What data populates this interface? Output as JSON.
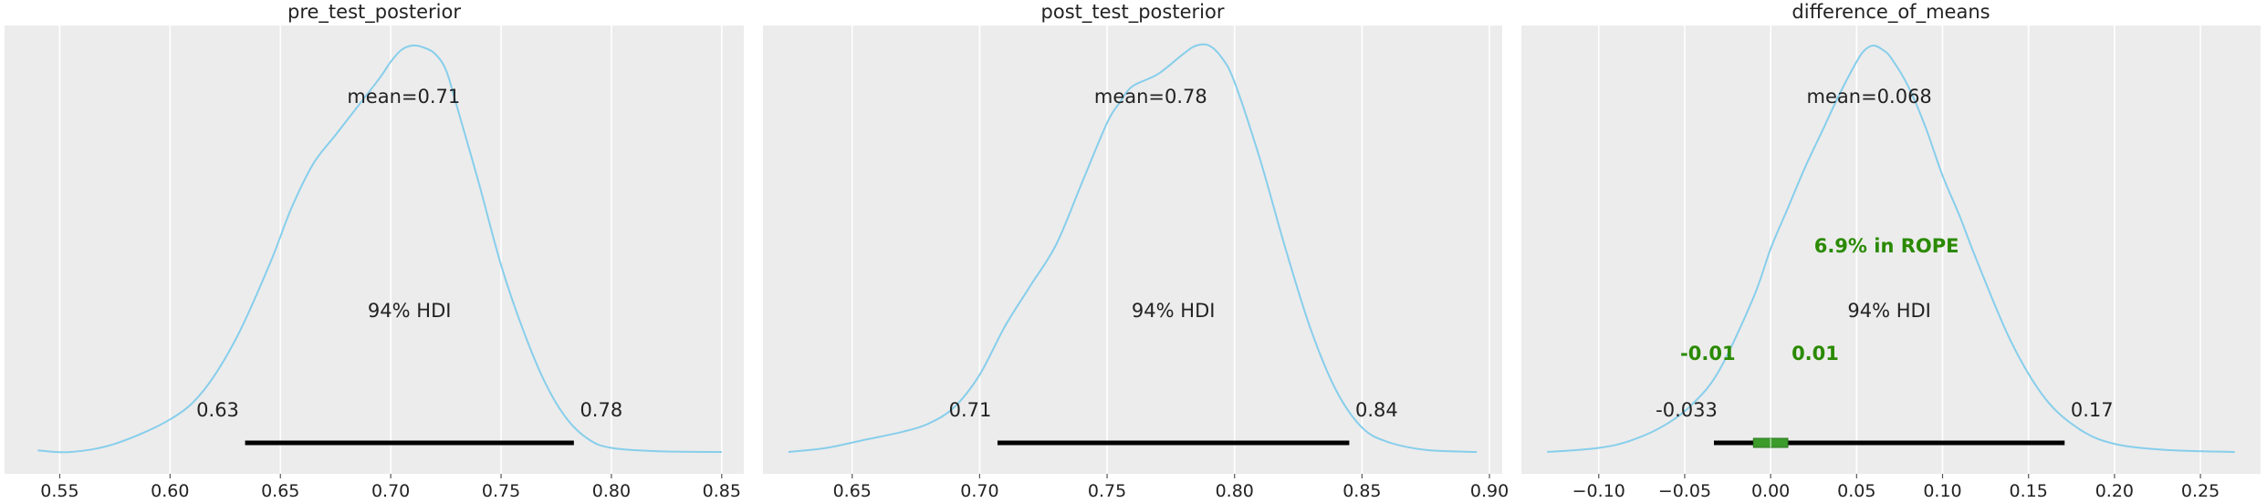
{
  "chart_data": [
    {
      "type": "area",
      "title": "pre_test_posterior",
      "xlim": [
        0.525,
        0.86
      ],
      "xticks": [
        0.55,
        0.6,
        0.65,
        0.7,
        0.75,
        0.8,
        0.85
      ],
      "xtick_labels": [
        "0.55",
        "0.60",
        "0.65",
        "0.70",
        "0.75",
        "0.80",
        "0.85"
      ],
      "grid": "vertical",
      "density": {
        "x": [
          0.54,
          0.555,
          0.575,
          0.6,
          0.615,
          0.63,
          0.645,
          0.655,
          0.665,
          0.675,
          0.685,
          0.695,
          0.7,
          0.705,
          0.71,
          0.715,
          0.72,
          0.725,
          0.73,
          0.74,
          0.75,
          0.76,
          0.77,
          0.78,
          0.79,
          0.8,
          0.82,
          0.85
        ],
        "y": [
          0.004,
          0.0,
          0.02,
          0.08,
          0.15,
          0.28,
          0.46,
          0.6,
          0.71,
          0.78,
          0.85,
          0.92,
          0.96,
          0.99,
          1.0,
          0.995,
          0.98,
          0.94,
          0.85,
          0.66,
          0.46,
          0.3,
          0.17,
          0.08,
          0.03,
          0.01,
          0.002,
          0.0
        ]
      },
      "mean_label": "mean=0.71",
      "hdi_label": "94% HDI",
      "hdi": [
        0.634,
        0.783
      ],
      "hdi_low_label": "0.63",
      "hdi_high_label": "0.78",
      "colors": {
        "line": "#87ceeb",
        "hdi": "#000000",
        "background": "#ececec"
      }
    },
    {
      "type": "area",
      "title": "post_test_posterior",
      "xlim": [
        0.615,
        0.905
      ],
      "xticks": [
        0.65,
        0.7,
        0.75,
        0.8,
        0.85,
        0.9
      ],
      "xtick_labels": [
        "0.65",
        "0.70",
        "0.75",
        "0.80",
        "0.85",
        "0.90"
      ],
      "grid": "vertical",
      "density": {
        "x": [
          0.625,
          0.64,
          0.655,
          0.67,
          0.68,
          0.69,
          0.7,
          0.71,
          0.72,
          0.73,
          0.74,
          0.75,
          0.755,
          0.76,
          0.77,
          0.78,
          0.785,
          0.79,
          0.795,
          0.8,
          0.81,
          0.82,
          0.83,
          0.84,
          0.85,
          0.86,
          0.875,
          0.895
        ],
        "y": [
          0.0,
          0.01,
          0.03,
          0.05,
          0.07,
          0.11,
          0.19,
          0.31,
          0.41,
          0.51,
          0.66,
          0.81,
          0.86,
          0.9,
          0.93,
          0.98,
          1.0,
          1.0,
          0.97,
          0.91,
          0.72,
          0.5,
          0.3,
          0.15,
          0.06,
          0.025,
          0.005,
          0.0
        ]
      },
      "mean_label": "mean=0.78",
      "hdi_label": "94% HDI",
      "hdi": [
        0.707,
        0.845
      ],
      "hdi_low_label": "0.71",
      "hdi_high_label": "0.84",
      "colors": {
        "line": "#87ceeb",
        "hdi": "#000000",
        "background": "#ececec"
      }
    },
    {
      "type": "area",
      "title": "difference_of_means",
      "xlim": [
        -0.145,
        0.285
      ],
      "xticks": [
        -0.1,
        -0.05,
        0.0,
        0.05,
        0.1,
        0.15,
        0.2,
        0.25
      ],
      "xtick_labels": [
        "−0.10",
        "−0.05",
        "0.00",
        "0.05",
        "0.10",
        "0.15",
        "0.20",
        "0.25"
      ],
      "grid": "vertical",
      "density": {
        "x": [
          -0.13,
          -0.1,
          -0.08,
          -0.06,
          -0.045,
          -0.03,
          -0.01,
          0.0,
          0.01,
          0.02,
          0.03,
          0.04,
          0.05,
          0.055,
          0.06,
          0.065,
          0.07,
          0.08,
          0.09,
          0.1,
          0.11,
          0.12,
          0.14,
          0.16,
          0.18,
          0.2,
          0.23,
          0.27
        ],
        "y": [
          0.0,
          0.01,
          0.03,
          0.07,
          0.12,
          0.2,
          0.38,
          0.5,
          0.6,
          0.7,
          0.79,
          0.88,
          0.96,
          0.99,
          1.0,
          0.99,
          0.97,
          0.9,
          0.8,
          0.68,
          0.58,
          0.47,
          0.27,
          0.13,
          0.055,
          0.02,
          0.005,
          0.0
        ]
      },
      "mean_label": "mean=0.068",
      "hdi_label": "94% HDI",
      "hdi": [
        -0.033,
        0.171
      ],
      "hdi_low_label": "-0.033",
      "hdi_high_label": "0.17",
      "rope": [
        -0.01,
        0.01
      ],
      "rope_low_label": "-0.01",
      "rope_high_label": "0.01",
      "rope_label": "6.9% in ROPE",
      "colors": {
        "line": "#87ceeb",
        "hdi": "#000000",
        "rope": "#2a8a00",
        "rope_box": "#3b9b2b",
        "background": "#ececec"
      }
    }
  ]
}
